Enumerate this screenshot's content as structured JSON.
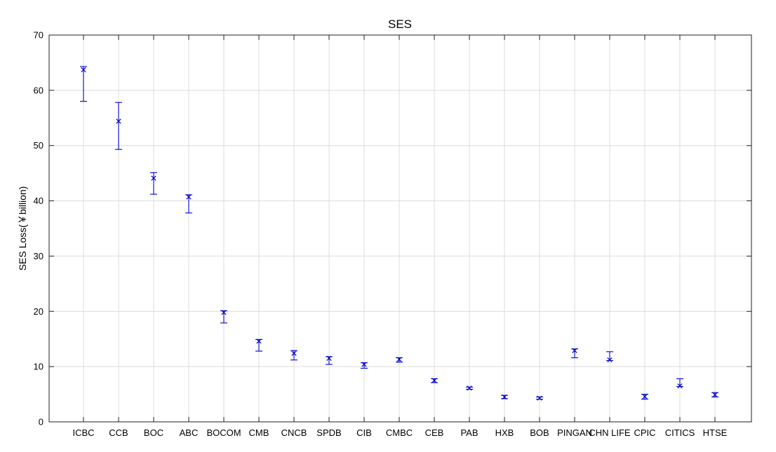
{
  "chart_data": {
    "type": "scatter",
    "title": "SES",
    "xlabel": "",
    "ylabel": "SES Loss(￥billion)",
    "ylim": [
      0,
      70
    ],
    "yticks": [
      0,
      10,
      20,
      30,
      40,
      50,
      60,
      70
    ],
    "grid": true,
    "color": "#0000cc",
    "marker": "x",
    "categories": [
      "ICBC",
      "CCB",
      "BOC",
      "ABC",
      "BOCOM",
      "CMB",
      "CNCB",
      "SPDB",
      "CIB",
      "CMBC",
      "CEB",
      "PAB",
      "HXB",
      "BOB",
      "PINGAN",
      "CHN LIFE",
      "CPIC",
      "CITICS",
      "HTSE"
    ],
    "values": [
      63.7,
      54.4,
      44.1,
      40.7,
      19.8,
      14.6,
      12.4,
      11.5,
      10.4,
      11.3,
      7.5,
      6.1,
      4.5,
      4.3,
      12.9,
      11.2,
      4.6,
      6.5,
      4.9
    ],
    "lower": [
      58.0,
      49.3,
      41.2,
      37.8,
      17.9,
      12.8,
      11.2,
      10.4,
      9.7,
      10.8,
      7.1,
      5.9,
      4.2,
      4.1,
      11.6,
      11.1,
      4.1,
      6.4,
      4.5
    ],
    "upper": [
      64.3,
      57.8,
      45.1,
      41.1,
      20.1,
      14.9,
      12.9,
      11.8,
      10.7,
      11.6,
      7.8,
      6.3,
      4.8,
      4.5,
      13.2,
      12.7,
      5.0,
      7.8,
      5.3
    ]
  }
}
